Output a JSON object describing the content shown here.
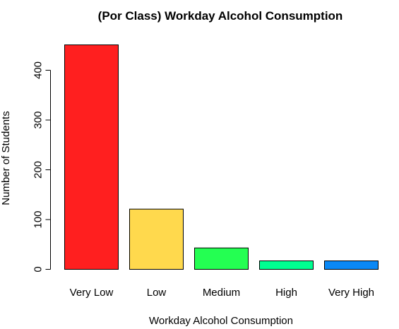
{
  "chart_data": {
    "type": "bar",
    "title": "(Por Class)  Workday Alcohol Consumption",
    "xlabel": "Workday Alcohol Consumption",
    "ylabel": "Number of Students",
    "categories": [
      "Very Low",
      "Low",
      "Medium",
      "High",
      "Very High"
    ],
    "values": [
      451,
      121,
      43,
      17,
      17
    ],
    "colors": [
      "#ff1f1f",
      "#ffd94d",
      "#24ff52",
      "#00ff91",
      "#0a88f5"
    ],
    "yticks": [
      0,
      100,
      200,
      300,
      400
    ],
    "ylim": [
      0,
      451
    ],
    "grid": false,
    "legend": "none"
  }
}
